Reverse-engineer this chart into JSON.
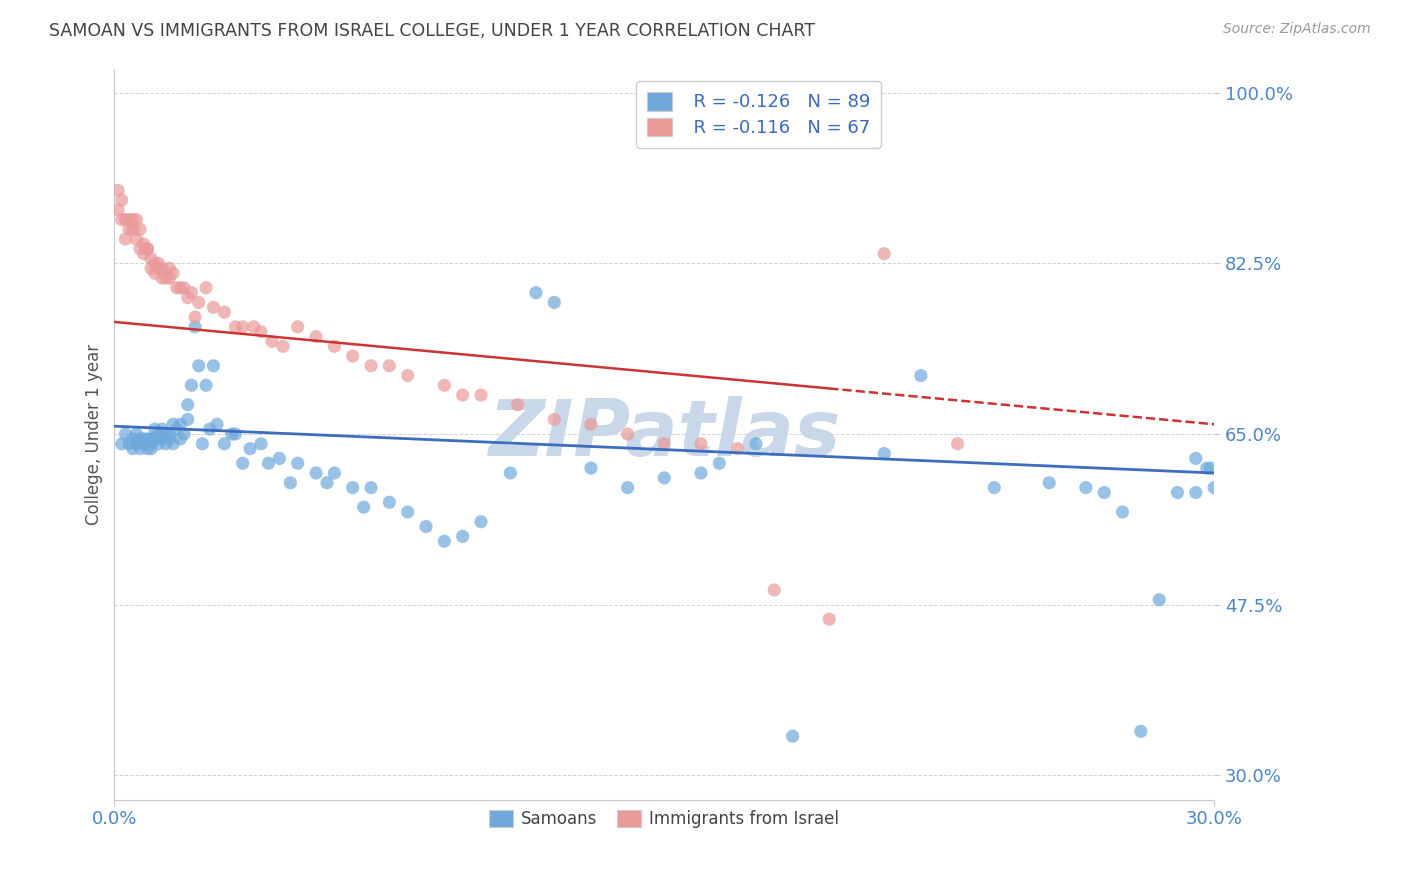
{
  "title": "SAMOAN VS IMMIGRANTS FROM ISRAEL COLLEGE, UNDER 1 YEAR CORRELATION CHART",
  "source": "Source: ZipAtlas.com",
  "ylabel": "College, Under 1 year",
  "xmin": 0.0,
  "xmax": 0.3,
  "ymin": 0.275,
  "ymax": 1.025,
  "yticks": [
    0.3,
    0.475,
    0.65,
    0.825,
    1.0
  ],
  "ytick_labels": [
    "30.0%",
    "47.5%",
    "65.0%",
    "82.5%",
    "100.0%"
  ],
  "xtick_labels": [
    "0.0%",
    "30.0%"
  ],
  "legend_labels": [
    "Samoans",
    "Immigrants from Israel"
  ],
  "r_samoan": -0.126,
  "n_samoan": 89,
  "r_israel": -0.116,
  "n_israel": 67,
  "color_samoan": "#6fa8dc",
  "color_israel": "#ea9999",
  "color_samoan_line": "#3c6dbf",
  "color_israel_line": "#cc3333",
  "bg_color": "#ffffff",
  "grid_color": "#c8c8c8",
  "title_color": "#434343",
  "source_color": "#999999",
  "label_color": "#4a86c8",
  "watermark_color": "#c8d8e8",
  "watermark": "ZIPatlas",
  "samoan_x": [
    0.002,
    0.003,
    0.004,
    0.005,
    0.005,
    0.006,
    0.006,
    0.007,
    0.007,
    0.008,
    0.008,
    0.009,
    0.009,
    0.01,
    0.01,
    0.01,
    0.011,
    0.011,
    0.012,
    0.012,
    0.013,
    0.013,
    0.014,
    0.014,
    0.015,
    0.015,
    0.016,
    0.016,
    0.017,
    0.018,
    0.018,
    0.019,
    0.02,
    0.02,
    0.021,
    0.022,
    0.023,
    0.024,
    0.025,
    0.026,
    0.027,
    0.028,
    0.03,
    0.032,
    0.033,
    0.035,
    0.037,
    0.04,
    0.042,
    0.045,
    0.048,
    0.05,
    0.055,
    0.058,
    0.06,
    0.065,
    0.068,
    0.07,
    0.075,
    0.08,
    0.085,
    0.09,
    0.095,
    0.1,
    0.108,
    0.115,
    0.12,
    0.13,
    0.14,
    0.15,
    0.16,
    0.165,
    0.175,
    0.185,
    0.21,
    0.22,
    0.24,
    0.255,
    0.265,
    0.27,
    0.275,
    0.28,
    0.285,
    0.29,
    0.295,
    0.295,
    0.298,
    0.299,
    0.3
  ],
  "samoan_y": [
    0.64,
    0.65,
    0.64,
    0.645,
    0.635,
    0.65,
    0.64,
    0.645,
    0.635,
    0.645,
    0.64,
    0.645,
    0.635,
    0.645,
    0.64,
    0.635,
    0.655,
    0.645,
    0.64,
    0.65,
    0.655,
    0.645,
    0.65,
    0.64,
    0.65,
    0.645,
    0.66,
    0.64,
    0.655,
    0.66,
    0.645,
    0.65,
    0.665,
    0.68,
    0.7,
    0.76,
    0.72,
    0.64,
    0.7,
    0.655,
    0.72,
    0.66,
    0.64,
    0.65,
    0.65,
    0.62,
    0.635,
    0.64,
    0.62,
    0.625,
    0.6,
    0.62,
    0.61,
    0.6,
    0.61,
    0.595,
    0.575,
    0.595,
    0.58,
    0.57,
    0.555,
    0.54,
    0.545,
    0.56,
    0.61,
    0.795,
    0.785,
    0.615,
    0.595,
    0.605,
    0.61,
    0.62,
    0.64,
    0.34,
    0.63,
    0.71,
    0.595,
    0.6,
    0.595,
    0.59,
    0.57,
    0.345,
    0.48,
    0.59,
    0.59,
    0.625,
    0.615,
    0.615,
    0.595
  ],
  "israel_x": [
    0.001,
    0.001,
    0.002,
    0.002,
    0.003,
    0.003,
    0.004,
    0.004,
    0.005,
    0.005,
    0.006,
    0.006,
    0.007,
    0.007,
    0.008,
    0.008,
    0.009,
    0.009,
    0.01,
    0.01,
    0.011,
    0.011,
    0.012,
    0.012,
    0.013,
    0.013,
    0.014,
    0.015,
    0.015,
    0.016,
    0.017,
    0.018,
    0.019,
    0.02,
    0.021,
    0.022,
    0.023,
    0.025,
    0.027,
    0.03,
    0.033,
    0.035,
    0.038,
    0.04,
    0.043,
    0.046,
    0.05,
    0.055,
    0.06,
    0.065,
    0.07,
    0.075,
    0.08,
    0.09,
    0.095,
    0.1,
    0.11,
    0.12,
    0.13,
    0.14,
    0.15,
    0.16,
    0.17,
    0.18,
    0.195,
    0.21,
    0.23
  ],
  "israel_y": [
    0.9,
    0.88,
    0.89,
    0.87,
    0.87,
    0.85,
    0.87,
    0.86,
    0.86,
    0.87,
    0.85,
    0.87,
    0.86,
    0.84,
    0.845,
    0.835,
    0.84,
    0.84,
    0.82,
    0.83,
    0.825,
    0.815,
    0.82,
    0.825,
    0.81,
    0.82,
    0.81,
    0.81,
    0.82,
    0.815,
    0.8,
    0.8,
    0.8,
    0.79,
    0.795,
    0.77,
    0.785,
    0.8,
    0.78,
    0.775,
    0.76,
    0.76,
    0.76,
    0.755,
    0.745,
    0.74,
    0.76,
    0.75,
    0.74,
    0.73,
    0.72,
    0.72,
    0.71,
    0.7,
    0.69,
    0.69,
    0.68,
    0.665,
    0.66,
    0.65,
    0.64,
    0.64,
    0.635,
    0.49,
    0.46,
    0.835,
    0.64
  ],
  "samoan_trendline": [
    0.658,
    0.61
  ],
  "israel_trendline_solid_end_x": 0.195,
  "israel_trendline": [
    0.765,
    0.66
  ]
}
